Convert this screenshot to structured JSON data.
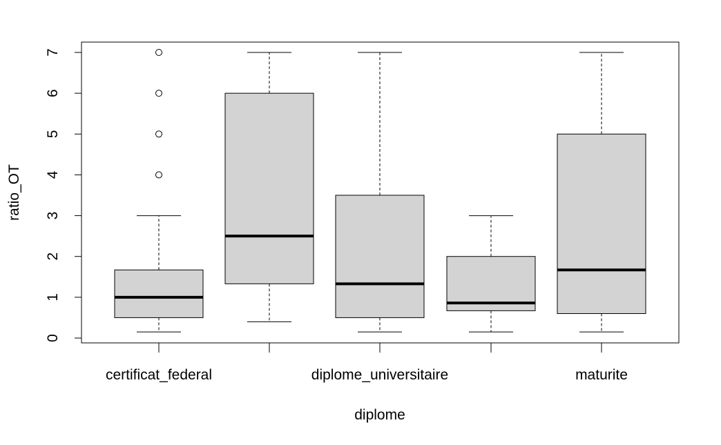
{
  "chart_data": {
    "type": "boxplot",
    "xlabel": "diplome",
    "ylabel": "ratio_OT",
    "ylim": [
      0,
      7
    ],
    "yticks": [
      0,
      1,
      2,
      3,
      4,
      5,
      6,
      7
    ],
    "categories": [
      "certificat_federal",
      "",
      "diplome_universitaire",
      "",
      "maturite"
    ],
    "boxes": [
      {
        "whisker_low": 0.15,
        "q1": 0.5,
        "median": 1.0,
        "q3": 1.67,
        "whisker_high": 3.0,
        "outliers": [
          4,
          5,
          6,
          7
        ]
      },
      {
        "whisker_low": 0.4,
        "q1": 1.33,
        "median": 2.5,
        "q3": 6.0,
        "whisker_high": 7.0,
        "outliers": []
      },
      {
        "whisker_low": 0.15,
        "q1": 0.5,
        "median": 1.33,
        "q3": 3.5,
        "whisker_high": 7.0,
        "outliers": []
      },
      {
        "whisker_low": 0.15,
        "q1": 0.67,
        "median": 0.86,
        "q3": 2.0,
        "whisker_high": 3.0,
        "outliers": []
      },
      {
        "whisker_low": 0.15,
        "q1": 0.6,
        "median": 1.67,
        "q3": 5.0,
        "whisker_high": 7.0,
        "outliers": []
      }
    ],
    "box_fill": "#d3d3d3",
    "grid": false
  }
}
